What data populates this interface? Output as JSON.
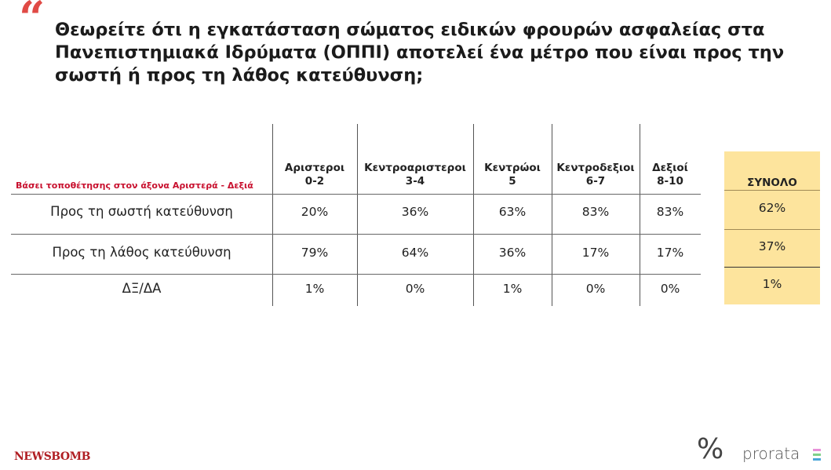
{
  "title": "Θεωρείτε ότι η εγκατάσταση σώματος ειδικών φρουρών ασφαλείας στα Πανεπιστημιακά Ιδρύματα (ΟΠΠΙ) αποτελεί ένα μέτρο που είναι προς την σωστή ή προς τη λάθος κατεύθυνση;",
  "quote_mark": "“",
  "colors": {
    "accent": "#e04a45",
    "total_bg": "#fde49d",
    "axis_label": "#c8102e"
  },
  "chart_data": {
    "type": "table",
    "axis_label": "Βάσει τοποθέτησης στον άξονα Αριστερά - Δεξιά",
    "columns": [
      {
        "name": "Αριστεροι",
        "range": "0-2"
      },
      {
        "name": "Κεντροαριστεροι",
        "range": "3-4"
      },
      {
        "name": "Κεντρώοι",
        "range": "5"
      },
      {
        "name": "Κεντροδεξιοι",
        "range": "6-7"
      },
      {
        "name": "Δεξιοί",
        "range": "8-10"
      }
    ],
    "total_label": "ΣΥΝΟΛΟ",
    "rows": [
      {
        "label": "Προς τη σωστή κατεύθυνση",
        "values": [
          "20%",
          "36%",
          "63%",
          "83%",
          "83%"
        ],
        "total": "62%"
      },
      {
        "label": "Προς τη λάθος κατεύθυνση",
        "values": [
          "79%",
          "64%",
          "36%",
          "17%",
          "17%"
        ],
        "total": "37%"
      },
      {
        "label": "ΔΞ/ΔΑ",
        "values": [
          "1%",
          "0%",
          "1%",
          "0%",
          "0%"
        ],
        "total": "1%"
      }
    ]
  },
  "footer": {
    "newsbomb": "NEWSBOMB",
    "pct": "%",
    "prorata": "prorata"
  }
}
